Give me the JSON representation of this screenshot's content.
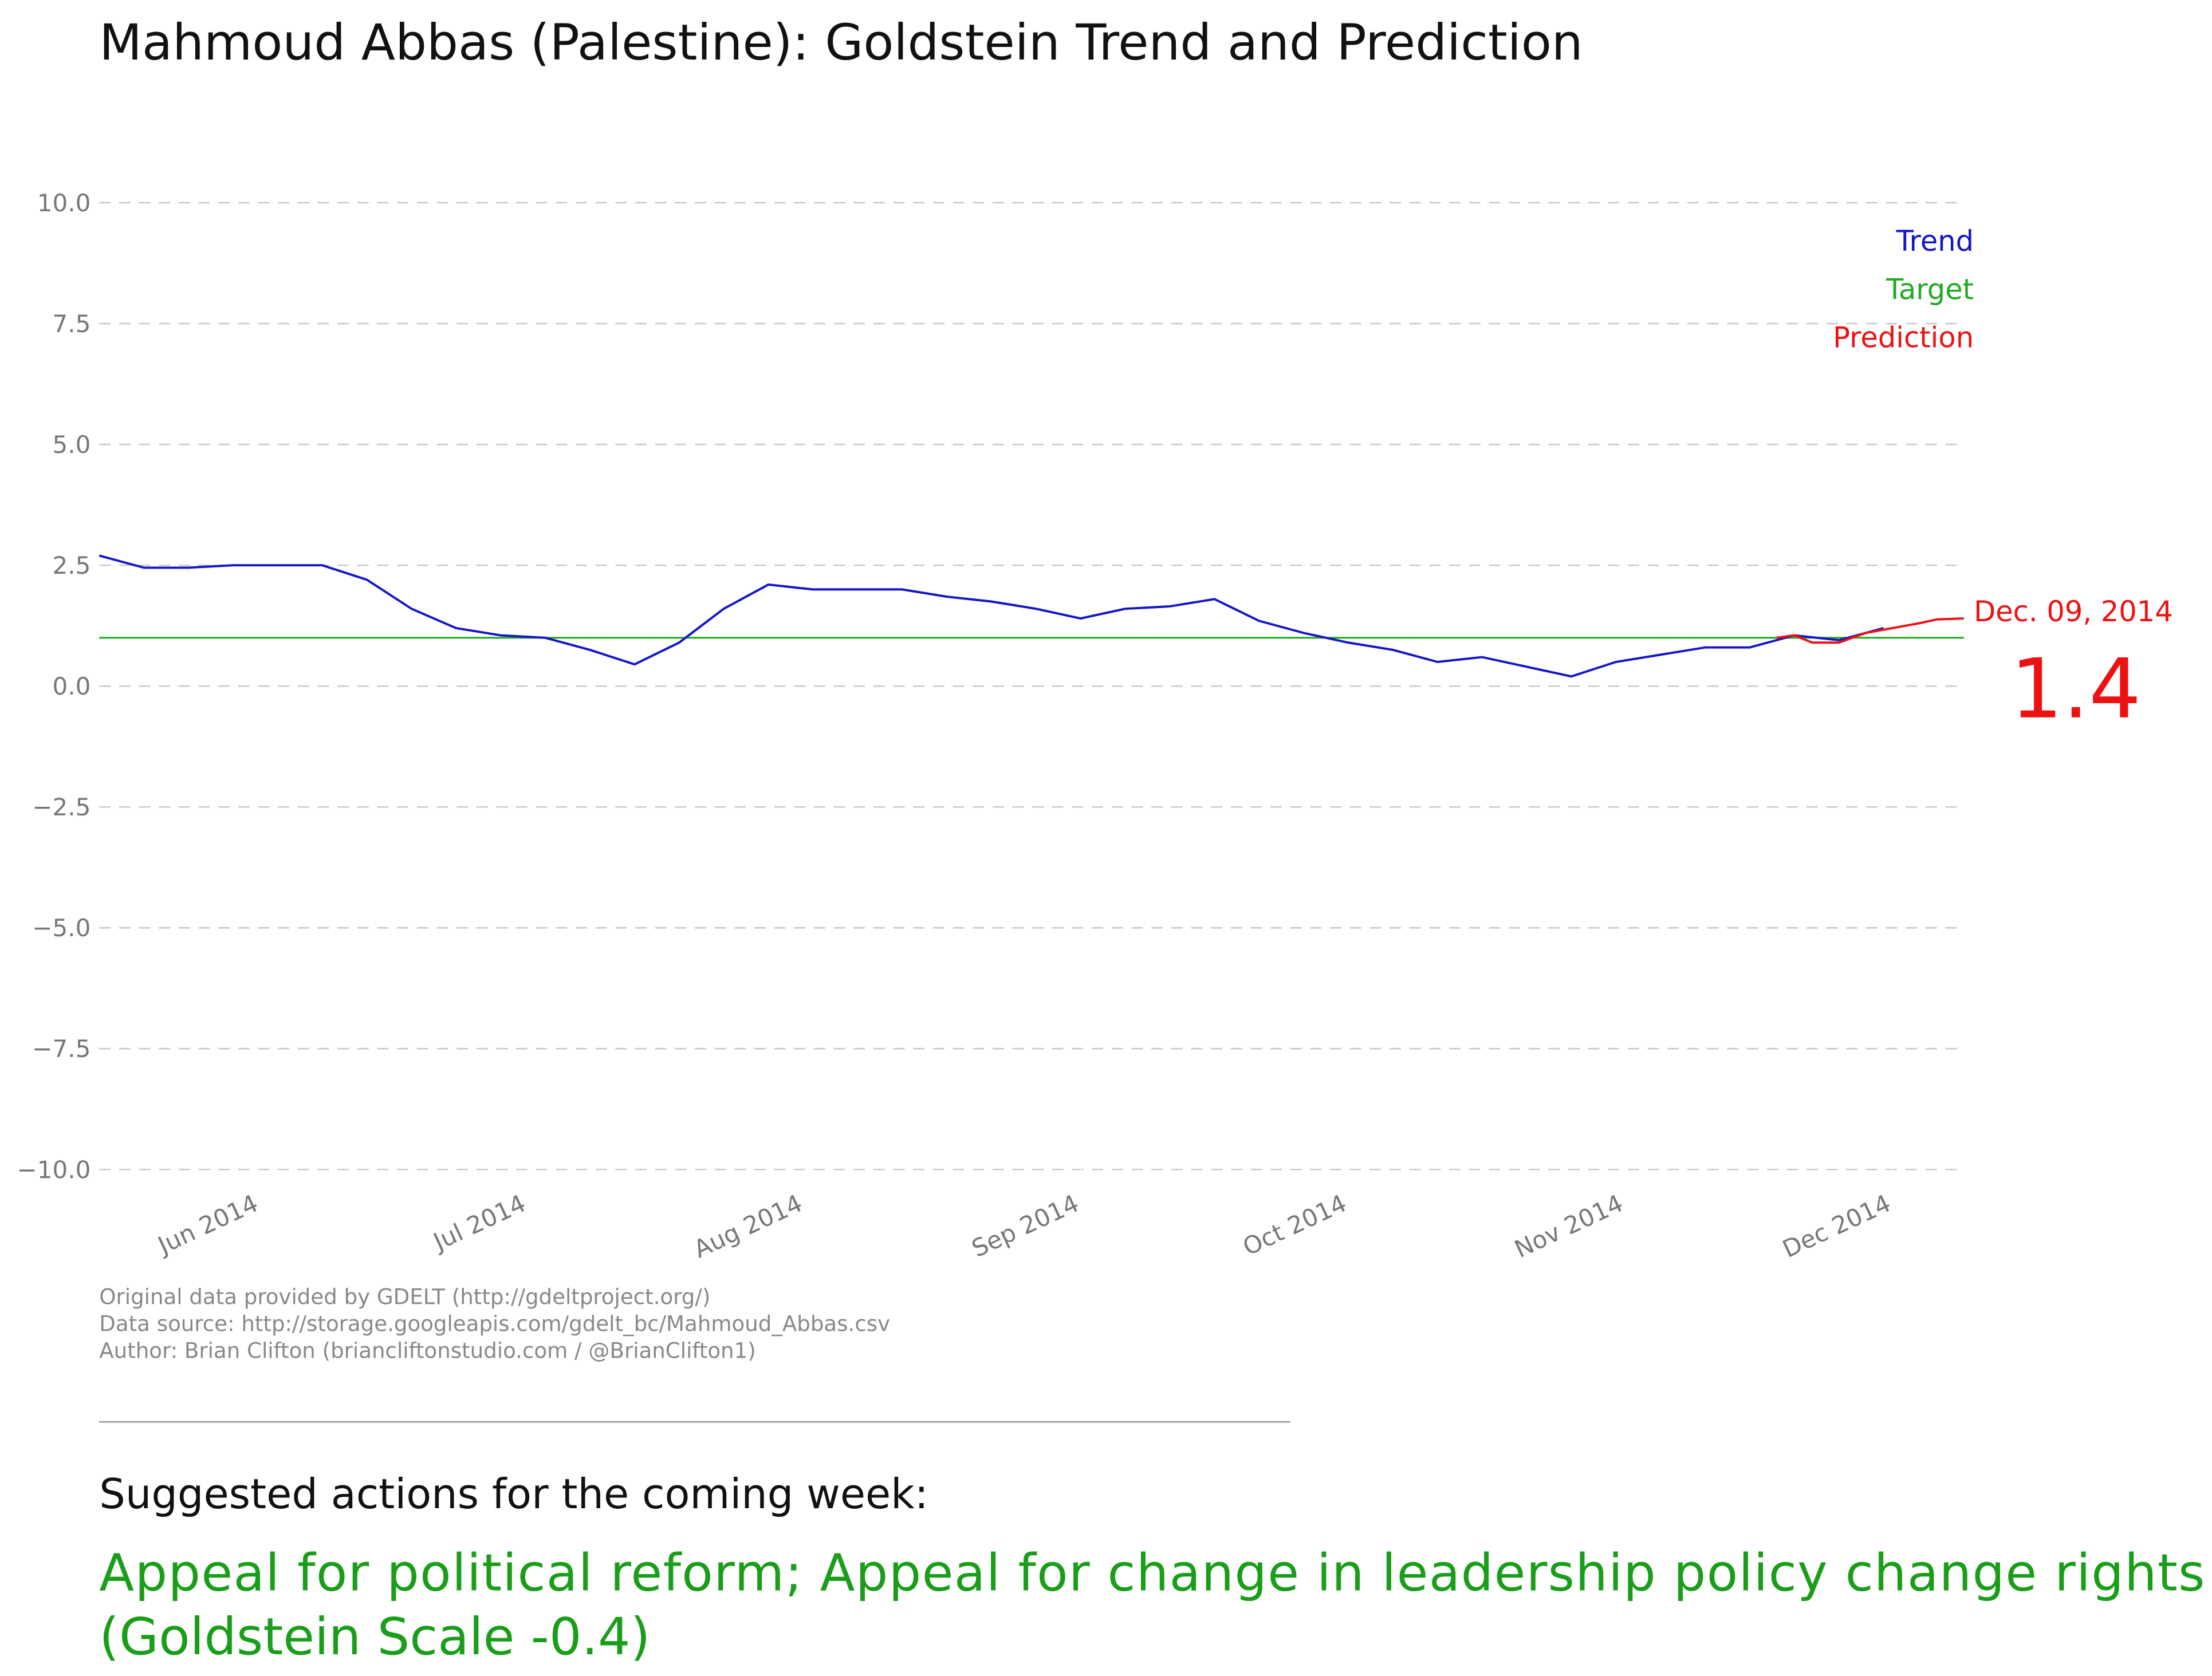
{
  "chart_data": {
    "type": "line",
    "title": "Mahmoud Abbas (Palestine): Goldstein Trend and Prediction",
    "xlim": [
      "2014-05-14",
      "2014-12-09"
    ],
    "xticks": [
      {
        "value": "2014-06-01",
        "label": "Jun 2014"
      },
      {
        "value": "2014-07-01",
        "label": "Jul 2014"
      },
      {
        "value": "2014-08-01",
        "label": "Aug 2014"
      },
      {
        "value": "2014-09-01",
        "label": "Sep 2014"
      },
      {
        "value": "2014-10-01",
        "label": "Oct 2014"
      },
      {
        "value": "2014-11-01",
        "label": "Nov 2014"
      },
      {
        "value": "2014-12-01",
        "label": "Dec 2014"
      }
    ],
    "ylim": [
      -10,
      10
    ],
    "yticks": [
      {
        "value": 10,
        "label": "10.0"
      },
      {
        "value": 7.5,
        "label": "7.5"
      },
      {
        "value": 5,
        "label": "5.0"
      },
      {
        "value": 2.5,
        "label": "2.5"
      },
      {
        "value": 0,
        "label": "0.0"
      },
      {
        "value": -2.5,
        "label": "−2.5"
      },
      {
        "value": -5,
        "label": "−5.0"
      },
      {
        "value": -7.5,
        "label": "−7.5"
      },
      {
        "value": -10,
        "label": "−10.0"
      }
    ],
    "grid": true,
    "legend": "top-right",
    "series": [
      {
        "name": "Trend",
        "color": "#1515c8",
        "x": [
          "2014-05-14",
          "2014-05-19",
          "2014-05-24",
          "2014-05-29",
          "2014-06-03",
          "2014-06-08",
          "2014-06-13",
          "2014-06-18",
          "2014-06-23",
          "2014-06-28",
          "2014-07-03",
          "2014-07-08",
          "2014-07-13",
          "2014-07-18",
          "2014-07-23",
          "2014-07-28",
          "2014-08-02",
          "2014-08-07",
          "2014-08-12",
          "2014-08-17",
          "2014-08-22",
          "2014-08-27",
          "2014-09-01",
          "2014-09-06",
          "2014-09-11",
          "2014-09-16",
          "2014-09-21",
          "2014-09-26",
          "2014-10-01",
          "2014-10-06",
          "2014-10-11",
          "2014-10-16",
          "2014-10-21",
          "2014-10-26",
          "2014-10-31",
          "2014-11-05",
          "2014-11-10",
          "2014-11-15",
          "2014-11-20",
          "2014-11-25",
          "2014-11-30"
        ],
        "values": [
          2.7,
          2.45,
          2.45,
          2.5,
          2.5,
          2.5,
          2.2,
          1.6,
          1.2,
          1.05,
          1.0,
          0.75,
          0.45,
          0.9,
          1.6,
          2.1,
          2.0,
          2.0,
          2.0,
          1.85,
          1.75,
          1.6,
          1.4,
          1.6,
          1.65,
          1.8,
          1.35,
          1.1,
          0.9,
          0.75,
          0.5,
          0.6,
          0.4,
          0.2,
          0.5,
          0.65,
          0.8,
          0.8,
          1.05,
          0.95,
          1.2
        ]
      },
      {
        "name": "Target",
        "color": "#22aa22",
        "x": [
          "2014-05-14",
          "2014-12-09"
        ],
        "values": [
          1,
          1
        ]
      },
      {
        "name": "Prediction",
        "color": "#ee1111",
        "x": [
          "2014-11-18",
          "2014-11-20",
          "2014-11-22",
          "2014-11-25",
          "2014-11-28",
          "2014-12-01",
          "2014-12-04",
          "2014-12-06",
          "2014-12-09"
        ],
        "values": [
          1.0,
          1.05,
          0.9,
          0.9,
          1.1,
          1.2,
          1.3,
          1.38,
          1.4
        ]
      }
    ],
    "annotation": {
      "date_label": "Dec. 09, 2014",
      "value_label": "1.4"
    },
    "footer": [
      "Original data provided by GDELT (http://gdeltproject.org/)",
      "Data source: http://storage.googleapis.com/gdelt_bc/Mahmoud_Abbas.csv",
      "Author: Brian Clifton (briancliftonstudio.com / @BrianClifton1)"
    ],
    "suggestion_heading": "Suggested actions for the coming week:",
    "suggestion_lines": [
      "Appeal for political reform; Appeal for change in leadership policy change rights",
      "(Goldstein Scale -0.4)"
    ]
  }
}
